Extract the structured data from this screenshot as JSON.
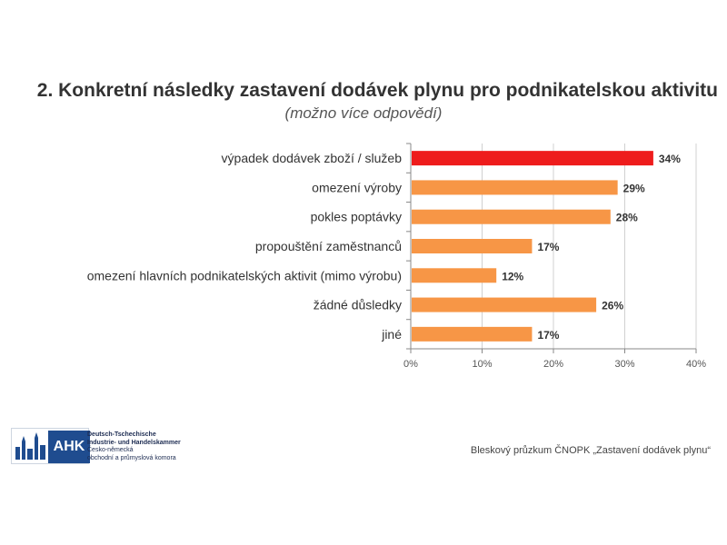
{
  "chart_data": {
    "type": "bar",
    "orientation": "horizontal",
    "title": "2. Konkretní následky zastavení dodávek plynu pro podnikatelskou aktivitu",
    "subtitle": "(možno více odpovědí)",
    "categories": [
      "výpadek dodávek zboží / služeb",
      "omezení výroby",
      "pokles poptávky",
      "propouštění zaměstnanců",
      "omezení hlavních podnikatelských aktivit (mimo výrobu)",
      "žádné důsledky",
      "jiné"
    ],
    "values": [
      34,
      29,
      28,
      17,
      12,
      26,
      17
    ],
    "value_labels": [
      "34%",
      "29%",
      "28%",
      "17%",
      "12%",
      "26%",
      "17%"
    ],
    "bar_colors": [
      "#ee1c1c",
      "#f79646",
      "#f79646",
      "#f79646",
      "#f79646",
      "#f79646",
      "#f79646"
    ],
    "xlim": [
      0,
      40
    ],
    "xticks": [
      0,
      10,
      20,
      30,
      40
    ],
    "xtick_labels": [
      "0%",
      "10%",
      "20%",
      "30%",
      "40%"
    ],
    "grid": true,
    "legend": "none"
  },
  "logo": {
    "badge": "AHK",
    "line1": "Deutsch-Tschechische",
    "line2": "Industrie- und Handelskammer",
    "line3": "Česko-německá",
    "line4": "obchodní a průmyslová komora"
  },
  "source": "Bleskový průzkum ČNOPK „Zastavení dodávek plynu“"
}
